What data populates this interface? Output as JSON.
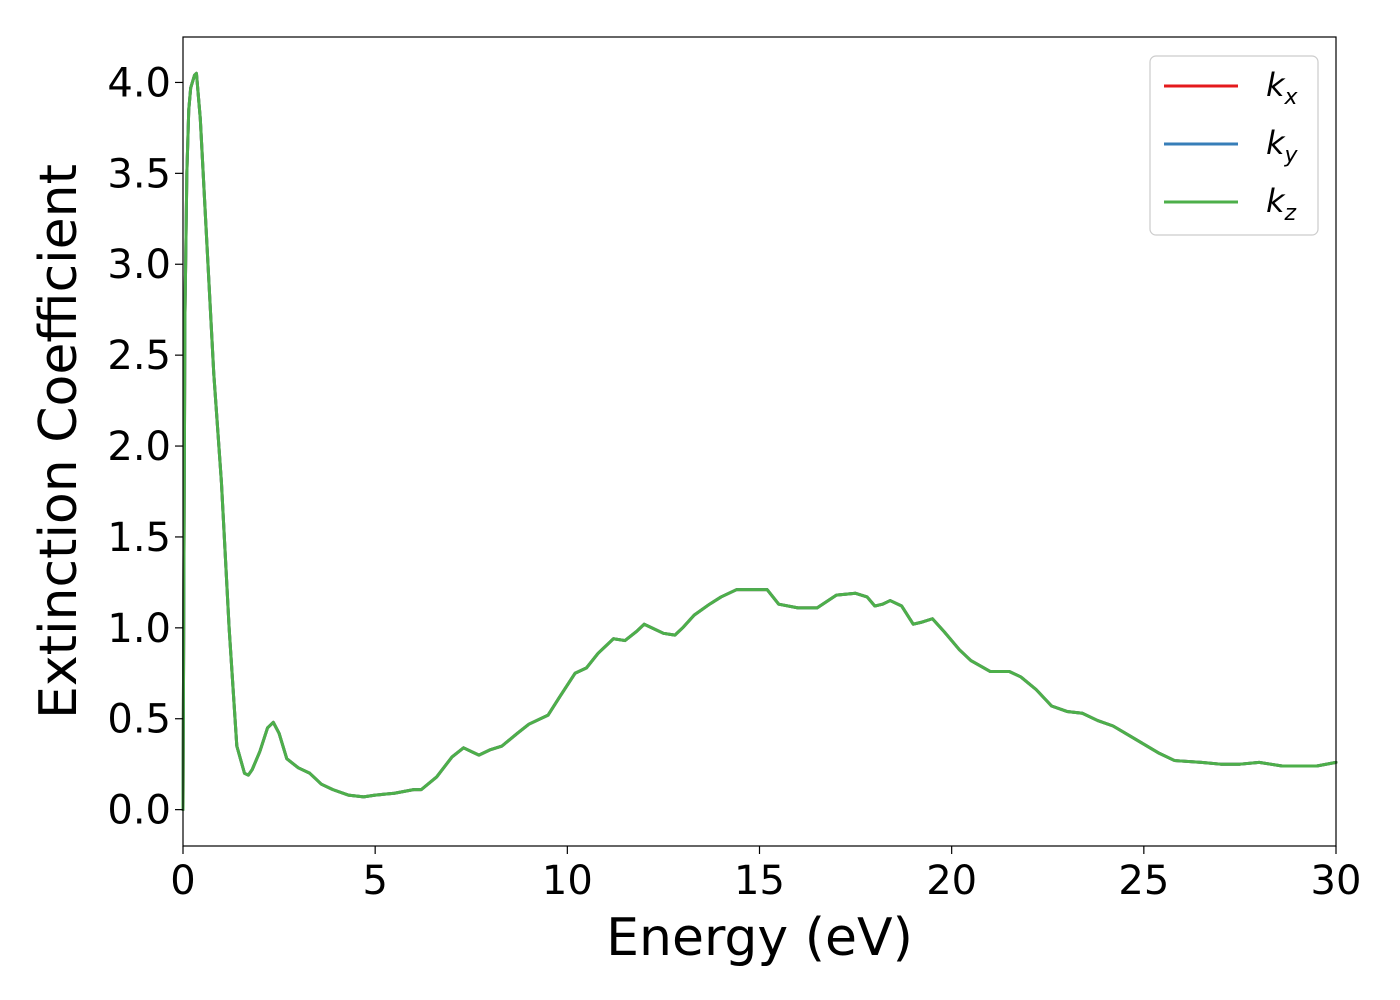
{
  "chart_data": {
    "type": "line",
    "xlabel": "Energy (eV)",
    "ylabel": "Extinction Coefficient",
    "xlim": [
      0,
      30
    ],
    "ylim": [
      -0.2,
      4.25
    ],
    "x_ticks": [
      "0",
      "5",
      "10",
      "15",
      "20",
      "25",
      "30"
    ],
    "y_ticks": [
      "0.0",
      "0.5",
      "1.0",
      "1.5",
      "2.0",
      "2.5",
      "3.0",
      "3.5",
      "4.0"
    ],
    "grid": false,
    "legend_position": "top-right",
    "colors": {
      "kx": "#e41a1c",
      "ky": "#377eb8",
      "kz": "#4daf4a"
    },
    "legend": [
      {
        "key": "kx",
        "base": "k",
        "sub": "x"
      },
      {
        "key": "ky",
        "base": "k",
        "sub": "y"
      },
      {
        "key": "kz",
        "base": "k",
        "sub": "z"
      }
    ],
    "x": [
      0,
      0.05,
      0.1,
      0.15,
      0.2,
      0.3,
      0.35,
      0.45,
      0.6,
      0.8,
      1.0,
      1.2,
      1.4,
      1.6,
      1.7,
      1.8,
      2.0,
      2.2,
      2.35,
      2.5,
      2.7,
      3.0,
      3.3,
      3.6,
      3.9,
      4.3,
      4.7,
      5.0,
      5.5,
      6.0,
      6.2,
      6.6,
      7.0,
      7.3,
      7.5,
      7.7,
      8.0,
      8.3,
      8.7,
      9.0,
      9.5,
      9.8,
      10.2,
      10.5,
      10.8,
      11.2,
      11.5,
      11.8,
      12.0,
      12.2,
      12.5,
      12.8,
      13.0,
      13.3,
      13.7,
      14.0,
      14.4,
      14.8,
      15.2,
      15.5,
      16.0,
      16.5,
      17.0,
      17.5,
      17.8,
      18.0,
      18.2,
      18.4,
      18.7,
      19.0,
      19.2,
      19.5,
      19.8,
      20.2,
      20.5,
      21.0,
      21.5,
      21.8,
      22.2,
      22.6,
      23.0,
      23.4,
      23.8,
      24.2,
      24.6,
      25.0,
      25.4,
      25.8,
      26.5,
      27.0,
      27.5,
      28.0,
      28.3,
      28.6,
      29.0,
      29.5,
      30.0
    ],
    "series": [
      {
        "name": "k_x",
        "key": "kx",
        "values": [
          0.0,
          2.7,
          3.5,
          3.85,
          3.97,
          4.04,
          4.05,
          3.8,
          3.2,
          2.4,
          1.8,
          1.0,
          0.35,
          0.2,
          0.19,
          0.22,
          0.32,
          0.45,
          0.48,
          0.42,
          0.28,
          0.23,
          0.2,
          0.14,
          0.11,
          0.08,
          0.07,
          0.08,
          0.09,
          0.11,
          0.11,
          0.18,
          0.29,
          0.34,
          0.32,
          0.3,
          0.33,
          0.35,
          0.42,
          0.47,
          0.52,
          0.62,
          0.75,
          0.78,
          0.86,
          0.94,
          0.93,
          0.98,
          1.02,
          1.0,
          0.97,
          0.96,
          1.0,
          1.07,
          1.13,
          1.17,
          1.21,
          1.21,
          1.21,
          1.13,
          1.11,
          1.11,
          1.18,
          1.19,
          1.17,
          1.12,
          1.13,
          1.15,
          1.12,
          1.02,
          1.03,
          1.05,
          0.98,
          0.88,
          0.82,
          0.76,
          0.76,
          0.73,
          0.66,
          0.57,
          0.54,
          0.53,
          0.49,
          0.46,
          0.41,
          0.36,
          0.31,
          0.27,
          0.26,
          0.25,
          0.25,
          0.26,
          0.25,
          0.24,
          0.24,
          0.24,
          0.26
        ]
      },
      {
        "name": "k_y",
        "key": "ky",
        "values": [
          0.0,
          2.7,
          3.5,
          3.85,
          3.97,
          4.04,
          4.05,
          3.8,
          3.2,
          2.4,
          1.8,
          1.0,
          0.35,
          0.2,
          0.19,
          0.22,
          0.32,
          0.45,
          0.48,
          0.42,
          0.28,
          0.23,
          0.2,
          0.14,
          0.11,
          0.08,
          0.07,
          0.08,
          0.09,
          0.11,
          0.11,
          0.18,
          0.29,
          0.34,
          0.32,
          0.3,
          0.33,
          0.35,
          0.42,
          0.47,
          0.52,
          0.62,
          0.75,
          0.78,
          0.86,
          0.94,
          0.93,
          0.98,
          1.02,
          1.0,
          0.97,
          0.96,
          1.0,
          1.07,
          1.13,
          1.17,
          1.21,
          1.21,
          1.21,
          1.13,
          1.11,
          1.11,
          1.18,
          1.19,
          1.17,
          1.12,
          1.13,
          1.15,
          1.12,
          1.02,
          1.03,
          1.05,
          0.98,
          0.88,
          0.82,
          0.76,
          0.76,
          0.73,
          0.66,
          0.57,
          0.54,
          0.53,
          0.49,
          0.46,
          0.41,
          0.36,
          0.31,
          0.27,
          0.26,
          0.25,
          0.25,
          0.26,
          0.25,
          0.24,
          0.24,
          0.24,
          0.26
        ]
      },
      {
        "name": "k_z",
        "key": "kz",
        "values": [
          0.0,
          2.7,
          3.5,
          3.85,
          3.97,
          4.04,
          4.05,
          3.8,
          3.2,
          2.4,
          1.8,
          1.0,
          0.35,
          0.2,
          0.19,
          0.22,
          0.32,
          0.45,
          0.48,
          0.42,
          0.28,
          0.23,
          0.2,
          0.14,
          0.11,
          0.08,
          0.07,
          0.08,
          0.09,
          0.11,
          0.11,
          0.18,
          0.29,
          0.34,
          0.32,
          0.3,
          0.33,
          0.35,
          0.42,
          0.47,
          0.52,
          0.62,
          0.75,
          0.78,
          0.86,
          0.94,
          0.93,
          0.98,
          1.02,
          1.0,
          0.97,
          0.96,
          1.0,
          1.07,
          1.13,
          1.17,
          1.21,
          1.21,
          1.21,
          1.13,
          1.11,
          1.11,
          1.18,
          1.19,
          1.17,
          1.12,
          1.13,
          1.15,
          1.12,
          1.02,
          1.03,
          1.05,
          0.98,
          0.88,
          0.82,
          0.76,
          0.76,
          0.73,
          0.66,
          0.57,
          0.54,
          0.53,
          0.49,
          0.46,
          0.41,
          0.36,
          0.31,
          0.27,
          0.26,
          0.25,
          0.25,
          0.26,
          0.25,
          0.24,
          0.24,
          0.24,
          0.26
        ]
      }
    ]
  }
}
